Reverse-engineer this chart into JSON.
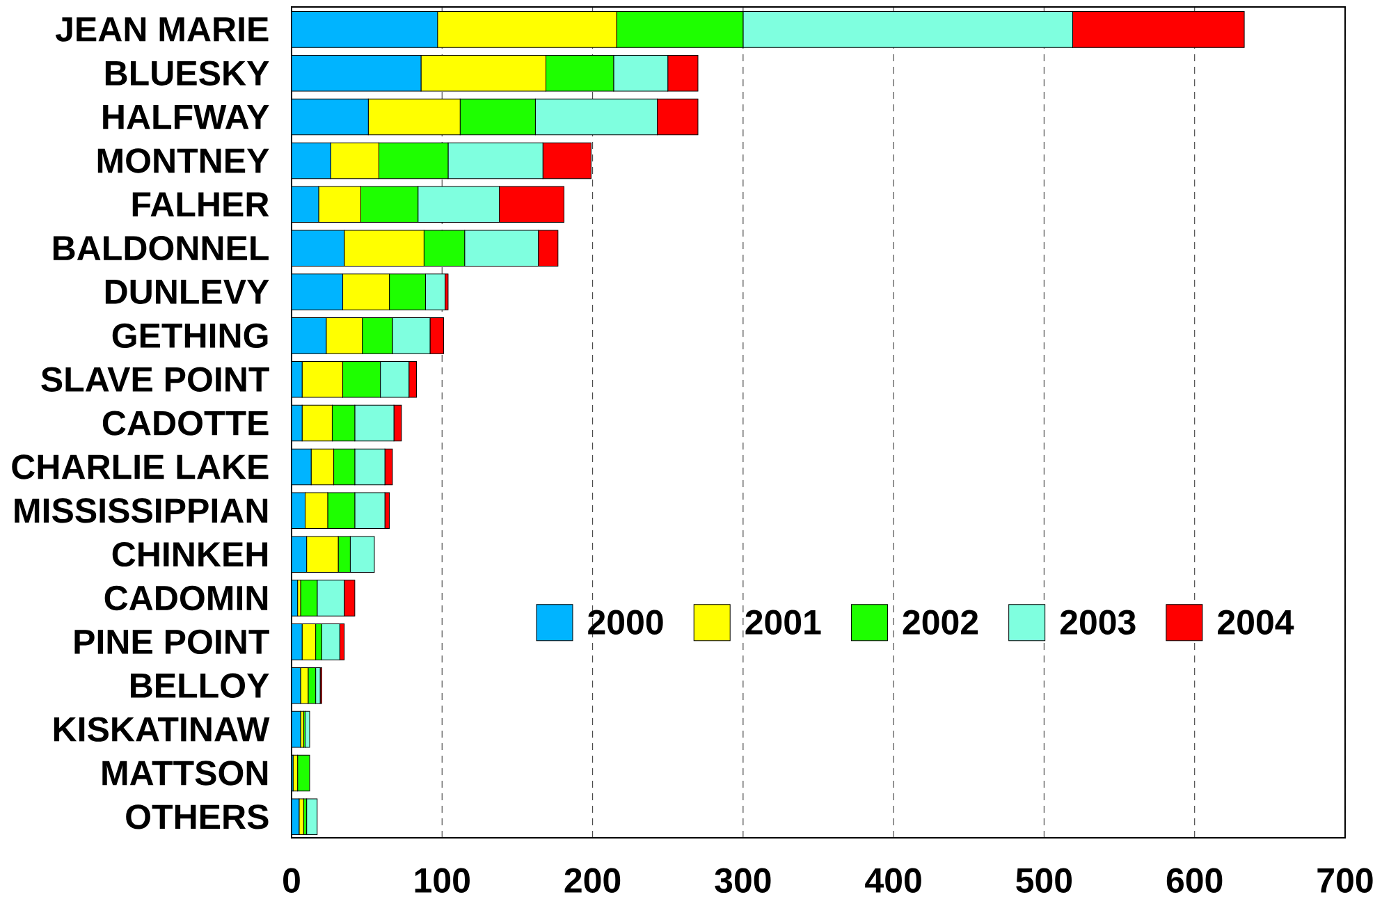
{
  "chart_data": {
    "type": "bar",
    "orientation": "horizontal",
    "stacked": true,
    "categories": [
      "JEAN MARIE",
      "BLUESKY",
      "HALFWAY",
      "MONTNEY",
      "FALHER",
      "BALDONNEL",
      "DUNLEVY",
      "GETHING",
      "SLAVE POINT",
      "CADOTTE",
      "CHARLIE LAKE",
      "MISSISSIPPIAN",
      "CHINKEH",
      "CADOMIN",
      "PINE POINT",
      "BELLOY",
      "KISKATINAW",
      "MATTSON",
      "OTHERS"
    ],
    "series": [
      {
        "name": "2000",
        "color": "#00b4ff",
        "values": [
          97,
          86,
          51,
          26,
          18,
          35,
          34,
          23,
          7,
          7,
          13,
          9,
          10,
          4,
          7,
          6,
          6,
          1,
          5
        ]
      },
      {
        "name": "2001",
        "color": "#ffff00",
        "values": [
          119,
          83,
          61,
          32,
          28,
          53,
          31,
          24,
          27,
          20,
          15,
          15,
          21,
          2,
          9,
          5,
          2,
          3,
          3
        ]
      },
      {
        "name": "2002",
        "color": "#1eff00",
        "values": [
          84,
          45,
          50,
          46,
          38,
          27,
          24,
          20,
          25,
          15,
          14,
          18,
          8,
          11,
          4,
          5,
          1,
          8,
          2
        ]
      },
      {
        "name": "2003",
        "color": "#7fffdf",
        "values": [
          219,
          36,
          81,
          63,
          54,
          49,
          13,
          25,
          19,
          26,
          20,
          20,
          16,
          18,
          12,
          3,
          3,
          null,
          7
        ]
      },
      {
        "name": "2004",
        "color": "#ff0000",
        "values": [
          114,
          20,
          27,
          32,
          43,
          13,
          2,
          9,
          5,
          5,
          5,
          3,
          null,
          7,
          3,
          1,
          null,
          null,
          null
        ]
      }
    ],
    "xlim": [
      0,
      700
    ],
    "xticks": [
      0,
      100,
      200,
      300,
      400,
      500,
      600,
      700
    ],
    "grid": "x",
    "legend": "bottom right"
  }
}
